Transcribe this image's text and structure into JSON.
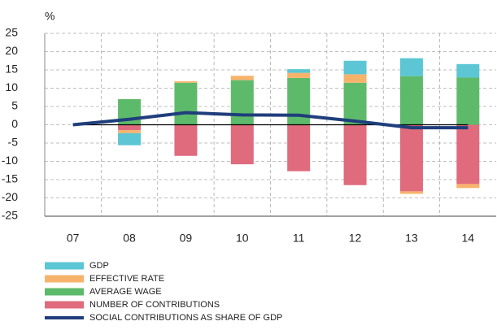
{
  "chart_data": {
    "type": "bar",
    "y_unit": "%",
    "categories": [
      "07",
      "08",
      "09",
      "10",
      "11",
      "12",
      "13",
      "14"
    ],
    "series": [
      {
        "name": "GDP",
        "color": "#5cc6d4",
        "type": "bar",
        "values": [
          0,
          -3.3,
          0,
          0,
          1.0,
          3.7,
          4.9,
          3.7
        ]
      },
      {
        "name": "EFFECTIVE RATE",
        "color": "#f7b36c",
        "type": "bar",
        "values": [
          0,
          -0.8,
          0.4,
          1.2,
          1.4,
          2.3,
          -0.7,
          -1.1
        ]
      },
      {
        "name": "AVERAGE WAGE",
        "color": "#5eba6b",
        "type": "bar",
        "values": [
          0,
          7,
          11.5,
          12.2,
          12.8,
          11.5,
          13.3,
          12.9
        ]
      },
      {
        "name": "NUMBER OF CONTRIBUTIONS",
        "color": "#df6b7d",
        "type": "bar",
        "values": [
          0,
          -1.5,
          -8.5,
          -10.8,
          -12.7,
          -16.5,
          -18.2,
          -16.2
        ]
      },
      {
        "name": "SOCIAL CONTRIBUTIONS AS SHARE OF GDP",
        "color": "#1f3e7c",
        "type": "line",
        "values": [
          0,
          1.5,
          3.3,
          2.7,
          2.6,
          1.0,
          -0.8,
          -0.8
        ]
      }
    ],
    "stack_order": [
      3,
      2,
      1,
      0
    ],
    "ylim": [
      -25,
      25
    ],
    "yticks": [
      -25,
      -20,
      -15,
      -10,
      -5,
      0,
      5,
      10,
      15,
      20,
      25
    ],
    "grid": true
  }
}
